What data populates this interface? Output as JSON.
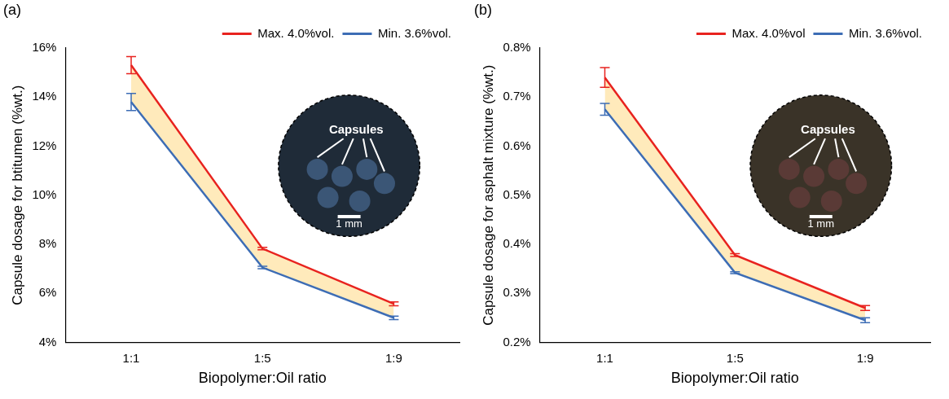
{
  "chart_data": [
    {
      "type": "line",
      "panel": "(a)",
      "x_label": "Biopolymer:Oil ratio",
      "y_label": "Capsule dosage for btitumen (%wt.)",
      "categories": [
        "1:1",
        "1:5",
        "1:9"
      ],
      "series": [
        {
          "name": "Max. 4.0%vol.",
          "color": "#e8231f",
          "values": [
            15.3,
            7.82,
            5.57
          ],
          "errors": [
            0.35,
            0.05,
            0.08
          ]
        },
        {
          "name": "Min. 3.6%vol.",
          "color": "#3d6db5",
          "values": [
            13.8,
            7.05,
            5.0
          ],
          "errors": [
            0.35,
            0.05,
            0.07
          ]
        }
      ],
      "ylim": [
        4,
        16
      ],
      "yticks": [
        {
          "value": 4,
          "label": "4%"
        },
        {
          "value": 6,
          "label": "6%"
        },
        {
          "value": 8,
          "label": "8%"
        },
        {
          "value": 10,
          "label": "10%"
        },
        {
          "value": 12,
          "label": "12%"
        },
        {
          "value": 14,
          "label": "14%"
        },
        {
          "value": 16,
          "label": "16%"
        }
      ],
      "grid": false,
      "legend": "top right",
      "annotations": [
        "Capsules",
        "1 mm"
      ]
    },
    {
      "type": "line",
      "panel": "(b)",
      "x_label": "Biopolymer:Oil ratio",
      "y_label": "Capsule dosage for asphalt mixture (%wt.)",
      "categories": [
        "1:1",
        "1:5",
        "1:9"
      ],
      "series": [
        {
          "name": "Max. 4.0%vol",
          "color": "#e8231f",
          "values": [
            0.74,
            0.378,
            0.27
          ],
          "errors": [
            0.02,
            0.003,
            0.005
          ]
        },
        {
          "name": "Min. 3.6%vol.",
          "color": "#3d6db5",
          "values": [
            0.675,
            0.342,
            0.245
          ],
          "errors": [
            0.012,
            0.002,
            0.005
          ]
        }
      ],
      "ylim": [
        0.2,
        0.8
      ],
      "yticks": [
        {
          "value": 0.2,
          "label": "0.2%"
        },
        {
          "value": 0.3,
          "label": "0.3%"
        },
        {
          "value": 0.4,
          "label": "0.4%"
        },
        {
          "value": 0.5,
          "label": "0.5%"
        },
        {
          "value": 0.6,
          "label": "0.6%"
        },
        {
          "value": 0.7,
          "label": "0.7%"
        },
        {
          "value": 0.8,
          "label": "0.8%"
        }
      ],
      "grid": false,
      "legend": "top right",
      "annotations": [
        "Capsules",
        "1 mm"
      ]
    }
  ]
}
